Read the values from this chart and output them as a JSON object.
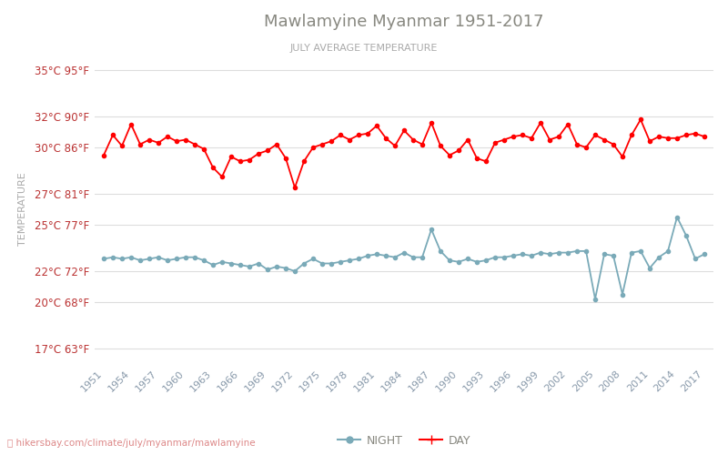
{
  "title": "Mawlamyine Myanmar 1951-2017",
  "subtitle": "JULY AVERAGE TEMPERATURE",
  "ylabel": "TEMPERATURE",
  "footer": "hikersbay.com/climate/july/myanmar/mawlamyine",
  "legend_night": "NIGHT",
  "legend_day": "DAY",
  "years": [
    1951,
    1952,
    1953,
    1954,
    1955,
    1956,
    1957,
    1958,
    1959,
    1960,
    1961,
    1962,
    1963,
    1964,
    1965,
    1966,
    1967,
    1968,
    1969,
    1970,
    1971,
    1972,
    1973,
    1974,
    1975,
    1976,
    1977,
    1978,
    1979,
    1980,
    1981,
    1982,
    1983,
    1984,
    1985,
    1986,
    1987,
    1988,
    1989,
    1990,
    1991,
    1992,
    1993,
    1994,
    1995,
    1996,
    1997,
    1998,
    1999,
    2000,
    2001,
    2002,
    2003,
    2004,
    2005,
    2006,
    2007,
    2008,
    2009,
    2010,
    2011,
    2012,
    2013,
    2014,
    2015,
    2016,
    2017
  ],
  "day": [
    29.5,
    30.8,
    30.1,
    31.5,
    30.2,
    30.5,
    30.3,
    30.7,
    30.4,
    30.5,
    30.2,
    29.9,
    28.7,
    28.1,
    29.4,
    29.1,
    29.2,
    29.6,
    29.8,
    30.2,
    29.3,
    27.4,
    29.1,
    30.0,
    30.2,
    30.4,
    30.8,
    30.5,
    30.8,
    30.9,
    31.4,
    30.6,
    30.1,
    31.1,
    30.5,
    30.2,
    31.6,
    30.1,
    29.5,
    29.8,
    30.5,
    29.3,
    29.1,
    30.3,
    30.5,
    30.7,
    30.8,
    30.6,
    31.6,
    30.5,
    30.7,
    31.5,
    30.2,
    30.0,
    30.8,
    30.5,
    30.2,
    29.4,
    30.8,
    31.8,
    30.4,
    30.7,
    30.6,
    30.6,
    30.8,
    30.9,
    30.7
  ],
  "night": [
    22.8,
    22.9,
    22.8,
    22.9,
    22.7,
    22.8,
    22.9,
    22.7,
    22.8,
    22.9,
    22.9,
    22.7,
    22.4,
    22.6,
    22.5,
    22.4,
    22.3,
    22.5,
    22.1,
    22.3,
    22.2,
    22.0,
    22.5,
    22.8,
    22.5,
    22.5,
    22.6,
    22.7,
    22.8,
    23.0,
    23.1,
    23.0,
    22.9,
    23.2,
    22.9,
    22.9,
    24.7,
    23.3,
    22.7,
    22.6,
    22.8,
    22.6,
    22.7,
    22.9,
    22.9,
    23.0,
    23.1,
    23.0,
    23.2,
    23.1,
    23.2,
    23.2,
    23.3,
    23.3,
    20.2,
    23.1,
    23.0,
    20.5,
    23.2,
    23.3,
    22.2,
    22.9,
    23.3,
    25.5,
    24.3,
    22.8,
    23.1
  ],
  "yticks_c": [
    17,
    20,
    22,
    25,
    27,
    30,
    32,
    35
  ],
  "yticks_f": [
    63,
    68,
    72,
    77,
    81,
    86,
    90,
    95
  ],
  "xtick_years": [
    1951,
    1954,
    1957,
    1960,
    1963,
    1966,
    1969,
    1972,
    1975,
    1978,
    1981,
    1984,
    1987,
    1990,
    1993,
    1996,
    1999,
    2002,
    2005,
    2008,
    2011,
    2014,
    2017
  ],
  "ylim": [
    16,
    36
  ],
  "xlim": [
    1950,
    2018
  ],
  "day_color": "#ff0000",
  "night_color": "#7aaab8",
  "title_color": "#888880",
  "subtitle_color": "#aaaaaa",
  "ylabel_color": "#aaaaaa",
  "tick_label_color": "#bb3333",
  "xtick_color": "#8899aa",
  "grid_color": "#dddddd",
  "bg_color": "#ffffff",
  "marker_size": 3,
  "line_width": 1.3,
  "footer_color": "#dd8888",
  "footer_icon_color": "#ff6633"
}
